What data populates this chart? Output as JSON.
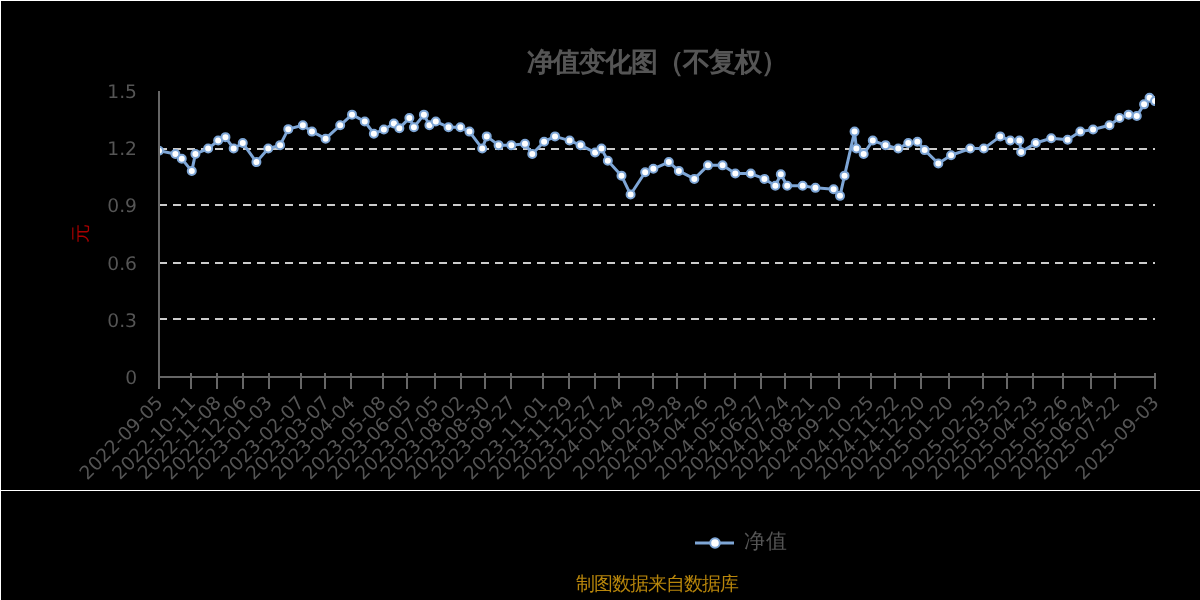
{
  "chart_data": {
    "type": "line",
    "title": "净值变化图（不复权）",
    "ylabel": "元",
    "x": [
      "2022-09-05",
      "2022-09-23",
      "2022-09-30",
      "2022-10-11",
      "2022-10-15",
      "2022-10-29",
      "2022-11-09",
      "2022-11-17",
      "2022-11-26",
      "2022-12-06",
      "2022-12-21",
      "2023-01-03",
      "2023-01-16",
      "2023-01-25",
      "2023-02-10",
      "2023-02-20",
      "2023-03-07",
      "2023-03-23",
      "2023-04-05",
      "2023-04-19",
      "2023-04-29",
      "2023-05-10",
      "2023-05-21",
      "2023-05-27",
      "2023-06-07",
      "2023-06-12",
      "2023-06-23",
      "2023-06-29",
      "2023-07-06",
      "2023-07-20",
      "2023-08-02",
      "2023-08-12",
      "2023-08-26",
      "2023-08-31",
      "2023-09-13",
      "2023-09-27",
      "2023-10-12",
      "2023-10-20",
      "2023-11-02",
      "2023-11-14",
      "2023-11-30",
      "2023-12-12",
      "2023-12-28",
      "2024-01-04",
      "2024-01-11",
      "2024-01-26",
      "2024-02-05",
      "2024-02-21",
      "2024-03-01",
      "2024-03-18",
      "2024-03-29",
      "2024-04-15",
      "2024-04-30",
      "2024-05-16",
      "2024-05-30",
      "2024-06-16",
      "2024-07-01",
      "2024-07-13",
      "2024-07-19",
      "2024-07-26",
      "2024-08-12",
      "2024-08-26",
      "2024-09-15",
      "2024-09-22",
      "2024-09-27",
      "2024-10-08",
      "2024-10-10",
      "2024-10-18",
      "2024-10-28",
      "2024-11-11",
      "2024-11-25",
      "2024-12-06",
      "2024-12-16",
      "2024-12-24",
      "2025-01-08",
      "2025-01-22",
      "2025-02-12",
      "2025-02-27",
      "2025-03-17",
      "2025-03-28",
      "2025-04-07",
      "2025-04-09",
      "2025-04-25",
      "2025-05-12",
      "2025-05-30",
      "2025-06-13",
      "2025-06-27",
      "2025-07-15",
      "2025-07-26",
      "2025-08-05",
      "2025-08-14",
      "2025-08-22",
      "2025-08-28",
      "2025-09-03"
    ],
    "series": [
      {
        "name": "净值",
        "color": "#7ea6d6",
        "values": [
          1.187,
          1.17,
          1.145,
          1.08,
          1.17,
          1.198,
          1.24,
          1.258,
          1.198,
          1.227,
          1.127,
          1.198,
          1.216,
          1.3,
          1.32,
          1.287,
          1.25,
          1.32,
          1.376,
          1.34,
          1.276,
          1.298,
          1.33,
          1.305,
          1.358,
          1.31,
          1.376,
          1.32,
          1.34,
          1.31,
          1.31,
          1.287,
          1.198,
          1.262,
          1.216,
          1.216,
          1.223,
          1.17,
          1.234,
          1.262,
          1.24,
          1.216,
          1.177,
          1.198,
          1.134,
          1.056,
          0.957,
          1.074,
          1.092,
          1.127,
          1.081,
          1.039,
          1.11,
          1.11,
          1.067,
          1.067,
          1.039,
          1.003,
          1.063,
          1.003,
          1.003,
          0.992,
          0.985,
          0.95,
          1.056,
          1.287,
          1.198,
          1.17,
          1.24,
          1.216,
          1.198,
          1.227,
          1.234,
          1.19,
          1.12,
          1.163,
          1.198,
          1.198,
          1.262,
          1.24,
          1.24,
          1.18,
          1.227,
          1.252,
          1.244,
          1.287,
          1.298,
          1.32,
          1.358,
          1.376,
          1.369,
          1.43,
          1.465,
          1.447
        ]
      }
    ],
    "xlim": [
      "2022-09-05",
      "2025-09-03"
    ],
    "xticks": [
      "2022-09-05",
      "2022-10-11",
      "2022-11-08",
      "2022-12-06",
      "2023-01-03",
      "2023-02-07",
      "2023-03-07",
      "2023-04-04",
      "2023-05-08",
      "2023-06-05",
      "2023-07-05",
      "2023-08-02",
      "2023-08-30",
      "2023-09-27",
      "2023-11-01",
      "2023-11-29",
      "2023-12-27",
      "2024-01-24",
      "2024-02-29",
      "2024-03-28",
      "2024-04-26",
      "2024-05-29",
      "2024-06-27",
      "2024-07-24",
      "2024-08-21",
      "2024-09-20",
      "2024-10-25",
      "2024-11-22",
      "2024-12-20",
      "2025-01-20",
      "2025-02-25",
      "2025-03-25",
      "2025-04-23",
      "2025-05-26",
      "2025-06-24",
      "2025-07-22",
      "2025-09-03"
    ],
    "ylim": [
      0,
      1.5
    ],
    "yticks": [
      0,
      0.3,
      0.6,
      0.9,
      1.2,
      1.5
    ],
    "grid": "y",
    "legend": "bottom",
    "marker": "circle",
    "line_style": "solid",
    "annotations": [
      "制图数据来自数据库"
    ]
  }
}
